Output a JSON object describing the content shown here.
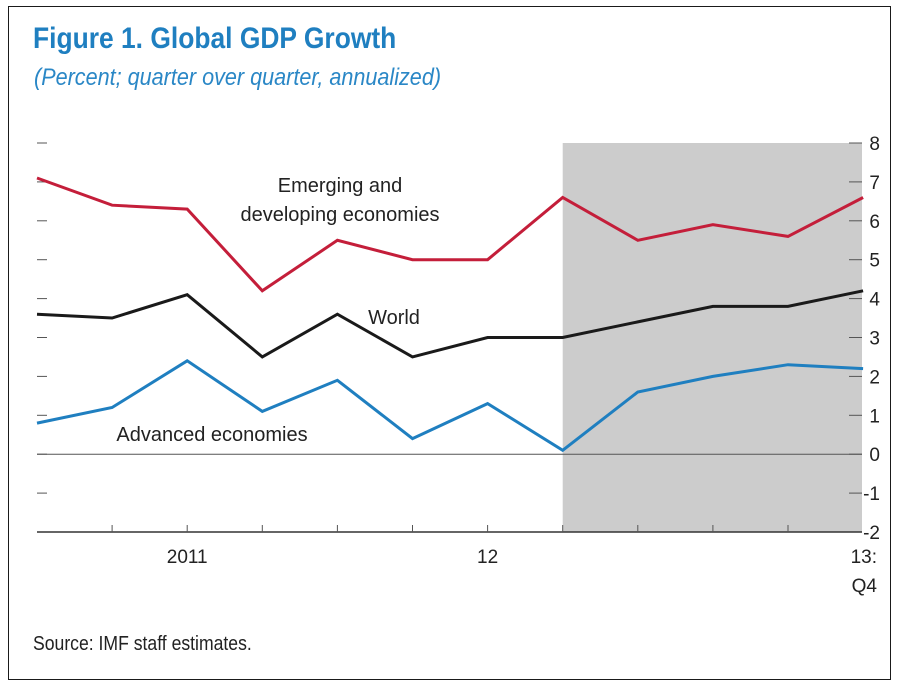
{
  "title": "Figure 1. Global GDP Growth",
  "subtitle": "(Percent; quarter over quarter, annualized)",
  "source": "Source: IMF staff estimates.",
  "chart_data": {
    "type": "line",
    "title": "Figure 1. Global GDP Growth",
    "subtitle": "(Percent; quarter over quarter, annualized)",
    "x_tick_labels": [
      {
        "quarter_index": 2,
        "lines": [
          "2011"
        ]
      },
      {
        "quarter_index": 6,
        "lines": [
          "12"
        ]
      },
      {
        "quarter_index": 10,
        "lines": [
          "13:",
          "Q4"
        ]
      }
    ],
    "ylim": [
      -2,
      8
    ],
    "yticks": [
      -2,
      -1,
      0,
      1,
      2,
      3,
      4,
      5,
      6,
      7,
      8
    ],
    "y_axis_side": "right",
    "grid": false,
    "zero_line": true,
    "projection_shading": {
      "from_quarter_index": 7,
      "to_quarter_index": 11,
      "color": "#cccccc"
    },
    "series": [
      {
        "name": "Emerging and developing economies",
        "label_lines": [
          "Emerging and",
          "developing economies"
        ],
        "color": "#c41e3a",
        "values": [
          7.1,
          6.4,
          6.3,
          4.2,
          5.5,
          5.0,
          5.0,
          6.6,
          5.5,
          5.9,
          5.6,
          6.6
        ]
      },
      {
        "name": "World",
        "label_lines": [
          "World"
        ],
        "color": "#1a1a1a",
        "values": [
          3.6,
          3.5,
          4.1,
          2.5,
          3.6,
          2.5,
          3.0,
          3.0,
          3.4,
          3.8,
          3.8,
          4.2
        ]
      },
      {
        "name": "Advanced economies",
        "label_lines": [
          "Advanced economies"
        ],
        "color": "#1f7fc0",
        "values": [
          0.8,
          1.2,
          2.4,
          1.1,
          1.9,
          0.4,
          1.3,
          0.1,
          1.6,
          2.0,
          2.3,
          2.2
        ]
      }
    ]
  }
}
